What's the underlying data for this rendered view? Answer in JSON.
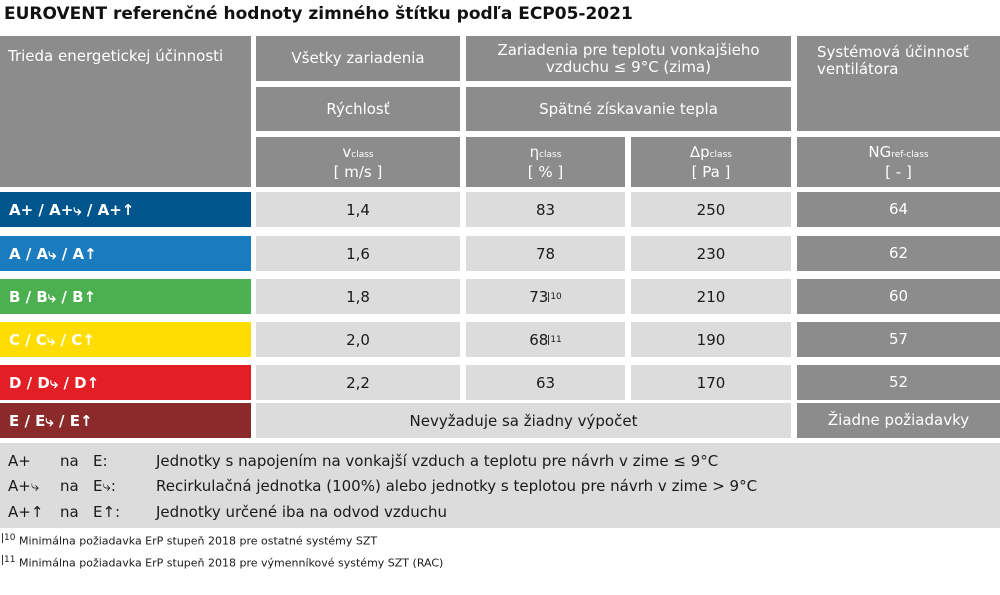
{
  "title": "EUROVENT referenčné hodnoty zimného štítku podľa ECP05-2021",
  "header": {
    "class_col": "Trieda energetickej účinnosti",
    "all_devices": "Všetky zariadenia",
    "outdoor_devices": "Zariadenia pre teplotu vonkajšieho vzduchu  ≤ 9°C (zima)",
    "fan_efficiency": "Systémová účinnosť ventilátora",
    "speed": "Rýchlosť",
    "heat_recovery": "Spätné získavanie tepla",
    "v_symbol": "v",
    "v_sub": "class",
    "v_unit": "[ m/s ]",
    "eta_symbol": "η",
    "eta_sub": "class",
    "eta_unit": "[ % ]",
    "dp_symbol": "∆p",
    "dp_sub": "class",
    "dp_unit": "[ Pa ]",
    "ng_symbol": "NG",
    "ng_sub": "ref-class",
    "ng_unit": "[ - ]"
  },
  "rows": [
    {
      "label": "A+ / A+⤷ / A+↑",
      "color": "#00558c",
      "v": "1,4",
      "eta": "83",
      "eta_note": "",
      "dp": "250",
      "ng": "64"
    },
    {
      "label": "A / A⤷ / A↑",
      "color": "#1a7bbf",
      "v": "1,6",
      "eta": "78",
      "eta_note": "",
      "dp": "230",
      "ng": "62"
    },
    {
      "label": "B / B⤷ / B↑",
      "color": "#4cb050",
      "v": "1,8",
      "eta": "73",
      "eta_note": "10",
      "dp": "210",
      "ng": "60"
    },
    {
      "label": "C / C⤷ / C↑",
      "color": "#ffdd00",
      "v": "2,0",
      "eta": "68",
      "eta_note": "11",
      "dp": "190",
      "ng": "57"
    },
    {
      "label": "D / D⤷ / D↑",
      "color": "#e31e24",
      "v": "2,2",
      "eta": "63",
      "eta_note": "",
      "dp": "170",
      "ng": "52"
    }
  ],
  "row_e": {
    "label": "E / E⤷ / E↑",
    "color": "#8b2a2a",
    "text": "Nevyžaduje sa žiadny výpočet",
    "ng": "Žiadne požiadavky"
  },
  "legend": [
    {
      "from": "A+",
      "na": "na",
      "to": "E:",
      "text": "Jednotky s napojením na vonkajší vzduch a teplotu pre návrh v zime ≤ 9°C"
    },
    {
      "from": "A+⤷",
      "na": "na",
      "to": "E⤷:",
      "text": "Recirkulačná jednotka (100%) alebo jednotky s teplotou pre návrh v zime > 9°C"
    },
    {
      "from": "A+↑",
      "na": "na",
      "to": "E↑:",
      "text": "Jednotky určené iba na odvod vzduchu"
    }
  ],
  "footnotes": [
    {
      "num": "10",
      "text": "Minimálna požiadavka ErP stupeň 2018 pre ostatné systémy SZT"
    },
    {
      "num": "11",
      "text": "Minimálna požiadavka ErP stupeň 2018 pre výmenníkové systémy SZT (RAC)"
    }
  ]
}
